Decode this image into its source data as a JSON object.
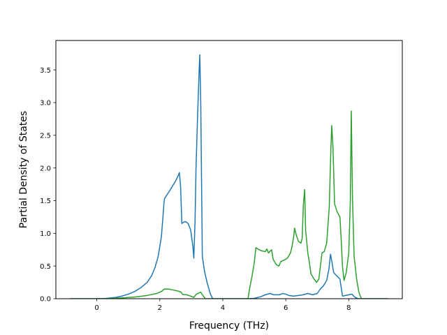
{
  "chart_data": {
    "type": "line",
    "title": "",
    "xlabel": "Frequency (THz)",
    "ylabel": "Partial Density of States",
    "xlim": [
      -1.3,
      9.7
    ],
    "ylim": [
      0,
      3.95
    ],
    "xticks": [
      0,
      2,
      4,
      6,
      8
    ],
    "xtick_labels": [
      "0",
      "2",
      "4",
      "6",
      "8"
    ],
    "yticks": [
      0.0,
      0.5,
      1.0,
      1.5,
      2.0,
      2.5,
      3.0,
      3.5
    ],
    "ytick_labels": [
      "0.0",
      "0.5",
      "1.0",
      "1.5",
      "2.0",
      "2.5",
      "3.0",
      "3.5"
    ],
    "grid": false,
    "legend": "none",
    "series": [
      {
        "color": "#1f77b4",
        "points": [
          [
            -0.85,
            0.0
          ],
          [
            0.0,
            0.0
          ],
          [
            0.3,
            0.005
          ],
          [
            0.6,
            0.02
          ],
          [
            0.8,
            0.04
          ],
          [
            1.0,
            0.07
          ],
          [
            1.2,
            0.11
          ],
          [
            1.4,
            0.17
          ],
          [
            1.6,
            0.25
          ],
          [
            1.75,
            0.36
          ],
          [
            1.85,
            0.48
          ],
          [
            1.95,
            0.65
          ],
          [
            2.05,
            0.95
          ],
          [
            2.1,
            1.25
          ],
          [
            2.13,
            1.45
          ],
          [
            2.15,
            1.53
          ],
          [
            2.2,
            1.57
          ],
          [
            2.3,
            1.64
          ],
          [
            2.4,
            1.72
          ],
          [
            2.5,
            1.8
          ],
          [
            2.58,
            1.88
          ],
          [
            2.62,
            1.93
          ],
          [
            2.66,
            1.72
          ],
          [
            2.7,
            1.15
          ],
          [
            2.75,
            1.17
          ],
          [
            2.82,
            1.18
          ],
          [
            2.9,
            1.15
          ],
          [
            2.98,
            1.05
          ],
          [
            3.05,
            0.8
          ],
          [
            3.08,
            0.62
          ],
          [
            3.12,
            1.2
          ],
          [
            3.15,
            2.0
          ],
          [
            3.2,
            2.8
          ],
          [
            3.25,
            3.5
          ],
          [
            3.27,
            3.73
          ],
          [
            3.3,
            3.0
          ],
          [
            3.33,
            1.6
          ],
          [
            3.35,
            0.65
          ],
          [
            3.42,
            0.42
          ],
          [
            3.5,
            0.25
          ],
          [
            3.6,
            0.08
          ],
          [
            3.68,
            0.0
          ],
          [
            4.8,
            0.0
          ],
          [
            5.0,
            0.005
          ],
          [
            5.2,
            0.03
          ],
          [
            5.35,
            0.06
          ],
          [
            5.5,
            0.08
          ],
          [
            5.62,
            0.06
          ],
          [
            5.8,
            0.06
          ],
          [
            5.9,
            0.08
          ],
          [
            6.0,
            0.07
          ],
          [
            6.1,
            0.05
          ],
          [
            6.25,
            0.04
          ],
          [
            6.4,
            0.05
          ],
          [
            6.55,
            0.06
          ],
          [
            6.7,
            0.08
          ],
          [
            6.85,
            0.06
          ],
          [
            7.0,
            0.08
          ],
          [
            7.1,
            0.15
          ],
          [
            7.2,
            0.2
          ],
          [
            7.3,
            0.28
          ],
          [
            7.37,
            0.45
          ],
          [
            7.42,
            0.68
          ],
          [
            7.47,
            0.55
          ],
          [
            7.52,
            0.4
          ],
          [
            7.62,
            0.35
          ],
          [
            7.72,
            0.3
          ],
          [
            7.8,
            0.04
          ],
          [
            8.0,
            0.06
          ],
          [
            8.1,
            0.07
          ],
          [
            8.2,
            0.02
          ],
          [
            8.3,
            0.0
          ],
          [
            9.25,
            0.0
          ]
        ]
      },
      {
        "color": "#2ca02c",
        "points": [
          [
            -0.85,
            0.0
          ],
          [
            0.0,
            0.0
          ],
          [
            0.4,
            0.003
          ],
          [
            0.8,
            0.012
          ],
          [
            1.2,
            0.025
          ],
          [
            1.6,
            0.05
          ],
          [
            1.9,
            0.08
          ],
          [
            2.05,
            0.11
          ],
          [
            2.15,
            0.15
          ],
          [
            2.3,
            0.145
          ],
          [
            2.45,
            0.13
          ],
          [
            2.6,
            0.115
          ],
          [
            2.68,
            0.1
          ],
          [
            2.72,
            0.065
          ],
          [
            2.85,
            0.06
          ],
          [
            2.98,
            0.04
          ],
          [
            3.08,
            0.02
          ],
          [
            3.15,
            0.065
          ],
          [
            3.25,
            0.09
          ],
          [
            3.3,
            0.1
          ],
          [
            3.38,
            0.04
          ],
          [
            3.45,
            0.0
          ],
          [
            4.8,
            0.0
          ],
          [
            4.85,
            0.15
          ],
          [
            4.93,
            0.35
          ],
          [
            5.0,
            0.55
          ],
          [
            5.05,
            0.78
          ],
          [
            5.15,
            0.75
          ],
          [
            5.25,
            0.73
          ],
          [
            5.35,
            0.72
          ],
          [
            5.4,
            0.76
          ],
          [
            5.45,
            0.7
          ],
          [
            5.55,
            0.75
          ],
          [
            5.6,
            0.6
          ],
          [
            5.7,
            0.52
          ],
          [
            5.78,
            0.5
          ],
          [
            5.85,
            0.57
          ],
          [
            5.95,
            0.59
          ],
          [
            6.05,
            0.62
          ],
          [
            6.15,
            0.7
          ],
          [
            6.2,
            0.8
          ],
          [
            6.25,
            0.95
          ],
          [
            6.28,
            1.08
          ],
          [
            6.33,
            0.98
          ],
          [
            6.4,
            0.88
          ],
          [
            6.48,
            0.85
          ],
          [
            6.52,
            0.92
          ],
          [
            6.56,
            1.45
          ],
          [
            6.6,
            1.67
          ],
          [
            6.63,
            1.05
          ],
          [
            6.7,
            0.7
          ],
          [
            6.75,
            0.55
          ],
          [
            6.8,
            0.38
          ],
          [
            6.9,
            0.3
          ],
          [
            6.98,
            0.25
          ],
          [
            7.05,
            0.3
          ],
          [
            7.1,
            0.5
          ],
          [
            7.15,
            0.7
          ],
          [
            7.22,
            0.72
          ],
          [
            7.3,
            0.85
          ],
          [
            7.38,
            1.4
          ],
          [
            7.43,
            2.25
          ],
          [
            7.46,
            2.65
          ],
          [
            7.5,
            2.3
          ],
          [
            7.55,
            1.45
          ],
          [
            7.63,
            1.33
          ],
          [
            7.72,
            1.25
          ],
          [
            7.76,
            0.9
          ],
          [
            7.8,
            0.5
          ],
          [
            7.85,
            0.28
          ],
          [
            7.92,
            0.4
          ],
          [
            8.0,
            0.7
          ],
          [
            8.05,
            1.5
          ],
          [
            8.08,
            2.87
          ],
          [
            8.12,
            1.5
          ],
          [
            8.17,
            0.65
          ],
          [
            8.25,
            0.3
          ],
          [
            8.32,
            0.1
          ],
          [
            8.4,
            0.0
          ],
          [
            9.25,
            0.0
          ]
        ]
      }
    ]
  }
}
